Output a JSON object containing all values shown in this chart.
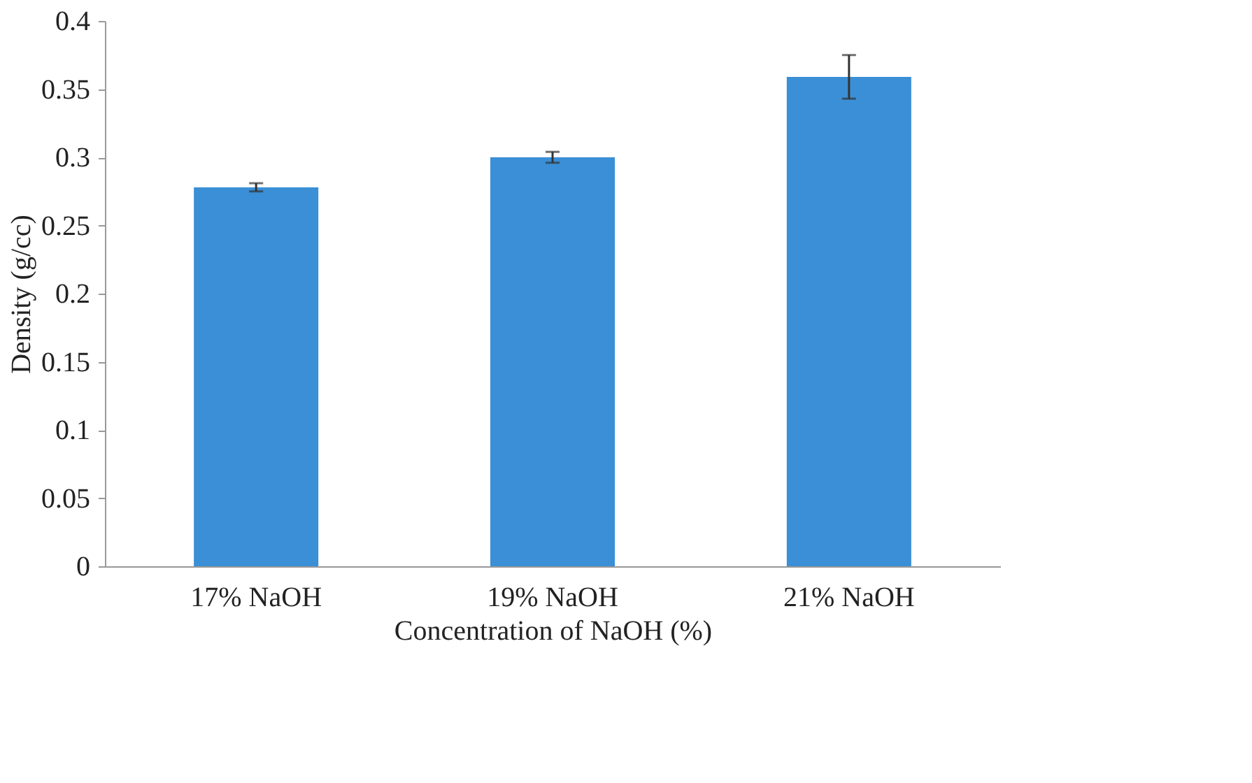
{
  "chart_data": {
    "type": "bar",
    "xlabel": "Concentration of NaOH (%)",
    "ylabel": "Density (g/cc)",
    "categories": [
      "17% NaOH",
      "19% NaOH",
      "21% NaOH"
    ],
    "values": [
      0.278,
      0.3,
      0.359
    ],
    "errors": [
      0.003,
      0.004,
      0.016
    ],
    "color": "#3a8fd6",
    "ylim": [
      0,
      0.4
    ],
    "yticks": [
      0,
      {
        "value": 0.05,
        "label": "0.05"
      },
      0.1,
      {
        "value": 0.15,
        "label": "0.15"
      },
      0.2,
      {
        "value": 0.25,
        "label": "0.25"
      },
      0.3,
      {
        "value": 0.35,
        "label": "0.35"
      },
      0.4
    ],
    "grid": false
  }
}
